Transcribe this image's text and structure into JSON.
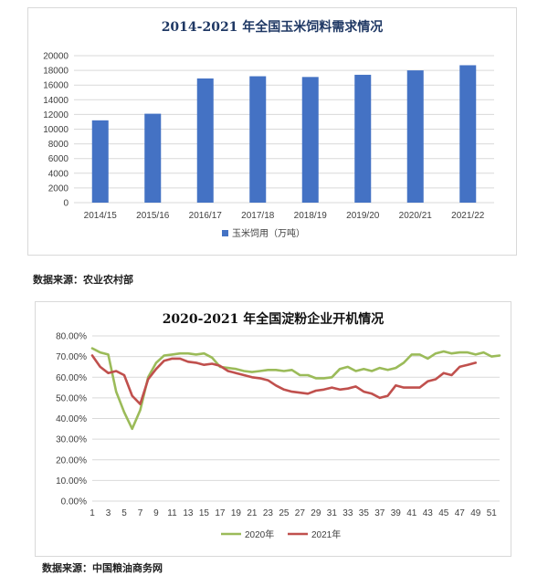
{
  "charts": [
    {
      "title": "2014-2021 年全国玉米饲料需求情况",
      "source": "数据来源：农业农村部"
    },
    {
      "title": "2020-2021 年全国淀粉企业开机情况",
      "source": "数据来源：中国粮油商务网"
    }
  ],
  "chart_data": [
    {
      "type": "bar",
      "title": "2014-2021 年全国玉米饲料需求情况",
      "categories": [
        "2014/15",
        "2015/16",
        "2016/17",
        "2017/18",
        "2018/19",
        "2019/20",
        "2020/21",
        "2021/22"
      ],
      "series": [
        {
          "name": "玉米饲用（万吨）",
          "values": [
            11200,
            12100,
            16900,
            17200,
            17100,
            17400,
            18000,
            18700
          ]
        }
      ],
      "ylim": [
        0,
        20000
      ],
      "yticks": [
        "0",
        "2000",
        "4000",
        "6000",
        "8000",
        "10000",
        "12000",
        "14000",
        "16000",
        "18000",
        "20000"
      ],
      "grid": true,
      "legend_position": "bottom",
      "colors": {
        "bar": "#4472c4",
        "grid": "#d9d9d9"
      }
    },
    {
      "type": "line",
      "title": "2020-2021 年全国淀粉企业开机情况",
      "x_ticks": [
        "1",
        "3",
        "5",
        "7",
        "9",
        "11",
        "13",
        "15",
        "17",
        "19",
        "21",
        "23",
        "25",
        "27",
        "29",
        "31",
        "33",
        "35",
        "37",
        "39",
        "41",
        "43",
        "45",
        "47",
        "49",
        "51"
      ],
      "yticks": [
        "0.00%",
        "10.00%",
        "20.00%",
        "30.00%",
        "40.00%",
        "50.00%",
        "60.00%",
        "70.00%",
        "80.00%"
      ],
      "ylim": [
        0,
        80
      ],
      "grid": true,
      "legend_position": "bottom",
      "series": [
        {
          "name": "2020年",
          "color": "#9bbb59",
          "x": [
            1,
            2,
            3,
            4,
            5,
            6,
            7,
            8,
            9,
            10,
            11,
            12,
            13,
            14,
            15,
            16,
            17,
            18,
            19,
            20,
            21,
            22,
            23,
            24,
            25,
            26,
            27,
            28,
            29,
            30,
            31,
            32,
            33,
            34,
            35,
            36,
            37,
            38,
            39,
            40,
            41,
            42,
            43,
            44,
            45,
            46,
            47,
            48,
            49,
            50,
            51,
            52
          ],
          "values": [
            74,
            72,
            71,
            53,
            43,
            35,
            44,
            60,
            67,
            70.5,
            71,
            71.5,
            71.5,
            71,
            71.5,
            69.5,
            65,
            64.5,
            64,
            63,
            62.5,
            63,
            63.5,
            63.5,
            63,
            63.5,
            61,
            61,
            59.5,
            59.5,
            60,
            64,
            65,
            63,
            64,
            63,
            64.5,
            63.5,
            64.5,
            67,
            71,
            71,
            69,
            71.5,
            72.5,
            71.5,
            72,
            72,
            71,
            72,
            70,
            70.5
          ]
        },
        {
          "name": "2021年",
          "color": "#c0504d",
          "x": [
            1,
            2,
            3,
            4,
            5,
            6,
            7,
            8,
            9,
            10,
            11,
            12,
            13,
            14,
            15,
            16,
            17,
            18,
            19,
            20,
            21,
            22,
            23,
            24,
            25,
            26,
            27,
            28,
            29,
            30,
            31,
            32,
            33,
            34,
            35,
            36,
            37,
            38,
            39,
            40,
            41,
            42,
            43,
            44,
            45,
            46,
            47,
            48,
            49
          ],
          "values": [
            70.5,
            65,
            62,
            63,
            61,
            51,
            47,
            59,
            64,
            68,
            69,
            69,
            67.5,
            67,
            66,
            66.5,
            65.5,
            63,
            62,
            61,
            60,
            59.5,
            58.5,
            56,
            54,
            53,
            52.5,
            52,
            53.5,
            54,
            55,
            54,
            54.5,
            55.5,
            53,
            52,
            50,
            51,
            56,
            55,
            55,
            55,
            58,
            59,
            62,
            61,
            65,
            66,
            67
          ]
        }
      ]
    }
  ]
}
